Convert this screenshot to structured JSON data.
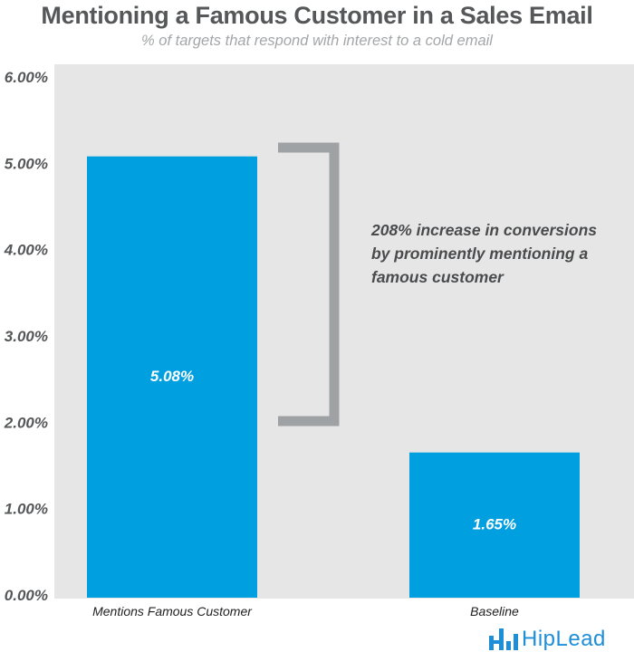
{
  "title": "Mentioning a Famous Customer in a Sales Email",
  "subtitle": "% of targets that respond with interest to a cold email",
  "annotation": {
    "lines": [
      "208% increase in conversions",
      "by prominently mentioning a",
      "famous customer"
    ]
  },
  "logo": {
    "text": "HipLead"
  },
  "colors": {
    "bar": "#009fe0",
    "plot_background": "#e6e6e6",
    "bracket": "#9fa2a5",
    "title": "#555759",
    "logo": "#1d8ed8"
  },
  "chart_data": {
    "type": "bar",
    "title": "Mentioning a Famous Customer in a Sales Email",
    "subtitle": "% of targets that respond with interest to a cold email",
    "categories": [
      "Mentions Famous Customer",
      "Baseline"
    ],
    "values": [
      5.08,
      1.65
    ],
    "value_labels": [
      "5.08%",
      "1.65%"
    ],
    "xlabel": "",
    "ylabel": "",
    "ylim": [
      0,
      6
    ],
    "y_ticks": [
      0,
      1,
      2,
      3,
      4,
      5,
      6
    ],
    "y_tick_labels": [
      "0.00%",
      "1.00%",
      "2.00%",
      "3.00%",
      "4.00%",
      "5.00%",
      "6.00%"
    ],
    "grid": false,
    "legend": "none"
  }
}
